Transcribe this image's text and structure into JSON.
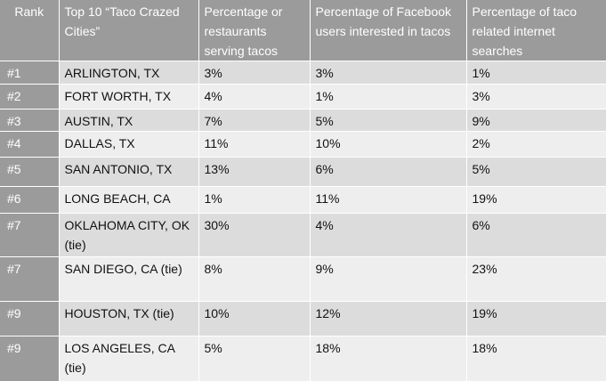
{
  "headers": {
    "rank": "Rank",
    "city": "Top 10 “Taco Crazed Cities”",
    "restaurants": "Percentage or restaurants serving tacos",
    "facebook": "Percentage of Facebook users interested in tacos",
    "searches": "Percentage of taco related internet searches"
  },
  "rows": [
    {
      "rank": "#1",
      "city": "ARLINGTON, TX",
      "restaurants": "3%",
      "facebook": "3%",
      "searches": "1%"
    },
    {
      "rank": "#2",
      "city": "FORT WORTH, TX",
      "restaurants": "4%",
      "facebook": "1%",
      "searches": "3%"
    },
    {
      "rank": "#3",
      "city": "AUSTIN, TX",
      "restaurants": "7%",
      "facebook": "5%",
      "searches": "9%"
    },
    {
      "rank": "#4",
      "city": "DALLAS, TX",
      "restaurants": "11%",
      "facebook": "10%",
      "searches": "2%"
    },
    {
      "rank": "#5",
      "city": "SAN ANTONIO, TX",
      "restaurants": "13%",
      "facebook": "6%",
      "searches": "5%"
    },
    {
      "rank": "#6",
      "city": "LONG BEACH, CA",
      "restaurants": "1%",
      "facebook": "11%",
      "searches": "19%"
    },
    {
      "rank": "#7",
      "city": "OKLAHOMA CITY, OK (tie)",
      "restaurants": "30%",
      "facebook": "4%",
      "searches": "6%"
    },
    {
      "rank": "#7",
      "city": "SAN DIEGO, CA (tie)",
      "restaurants": "8%",
      "facebook": "9%",
      "searches": "23%"
    },
    {
      "rank": "#9",
      "city": "HOUSTON, TX (tie)",
      "restaurants": "10%",
      "facebook": "12%",
      "searches": "19%"
    },
    {
      "rank": "#9",
      "city": "LOS ANGELES, CA (tie)",
      "restaurants": "5%",
      "facebook": "18%",
      "searches": "18%"
    }
  ]
}
